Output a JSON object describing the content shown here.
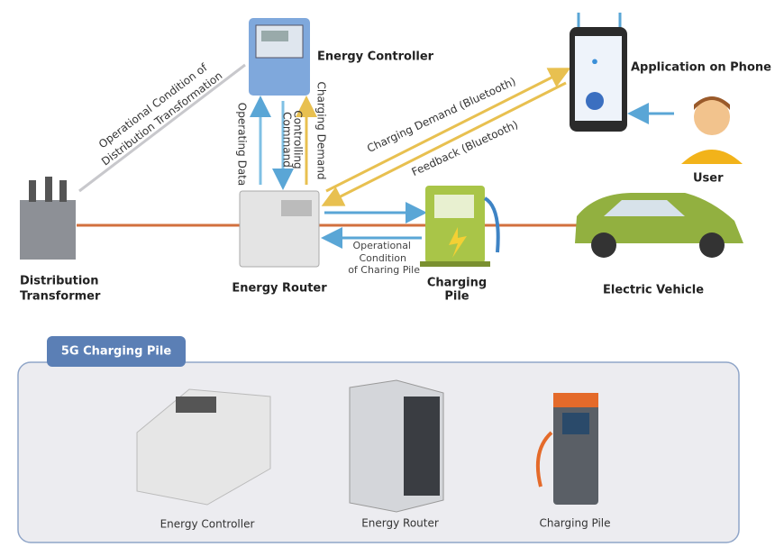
{
  "nodes": [
    {
      "label": "Energy Controller"
    },
    {
      "label": "Application on Phone"
    },
    {
      "label": "User"
    },
    {
      "label": [
        "Distribution",
        "Transformer"
      ]
    },
    {
      "label": "Energy Router"
    },
    {
      "label": [
        "Charging",
        "Pile"
      ]
    },
    {
      "label": "Electric Vehicle"
    }
  ],
  "edges": [
    {
      "label": [
        "Operational Condition of",
        "Distribution Transformation"
      ]
    },
    {
      "label": "Operating Data"
    },
    {
      "label": [
        "Controlling",
        "Command"
      ]
    },
    {
      "label": "Charging Demand"
    },
    {
      "label": "Charging Demand (Bluetooth)"
    },
    {
      "label": "Feedback (Bluetooth)"
    },
    {
      "label": [
        "Operational",
        "Condition",
        "of Charing Pile"
      ]
    }
  ],
  "panel": {
    "title": "5G Charging Pile",
    "items": [
      "Energy Controller",
      "Energy Router",
      "Charging Pile"
    ]
  }
}
